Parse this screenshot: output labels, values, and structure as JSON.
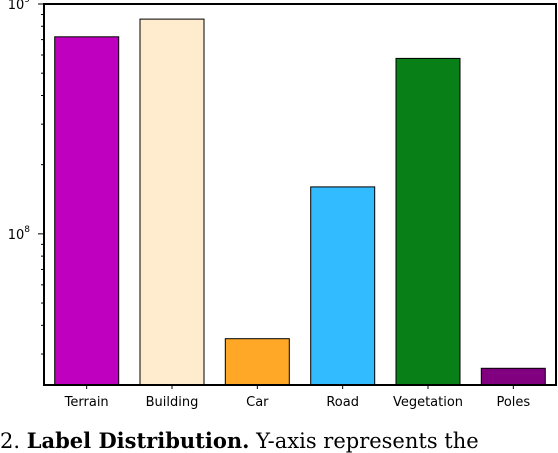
{
  "chart_data": {
    "type": "bar",
    "yscale": "log",
    "ylim": [
      22000000,
      1000000000
    ],
    "y_ticks": [
      {
        "value": 100000000,
        "base": "10",
        "exp": "8"
      },
      {
        "value": 1000000000,
        "base": "10",
        "exp": "9"
      }
    ],
    "categories": [
      "Terrain",
      "Building",
      "Car",
      "Road",
      "Vegetation",
      "Poles"
    ],
    "values": [
      720000000,
      860000000,
      35000000,
      160000000,
      580000000,
      26000000
    ],
    "colors": [
      "#bf00bf",
      "#ffebcd",
      "#ffa726",
      "#33bbff",
      "#087f17",
      "#800080"
    ],
    "xlabel": "",
    "ylabel": "",
    "title": "",
    "grid": false
  },
  "caption": {
    "prefix": "2.",
    "bold": "Label Distribution.",
    "rest": " Y-axis represents the"
  }
}
